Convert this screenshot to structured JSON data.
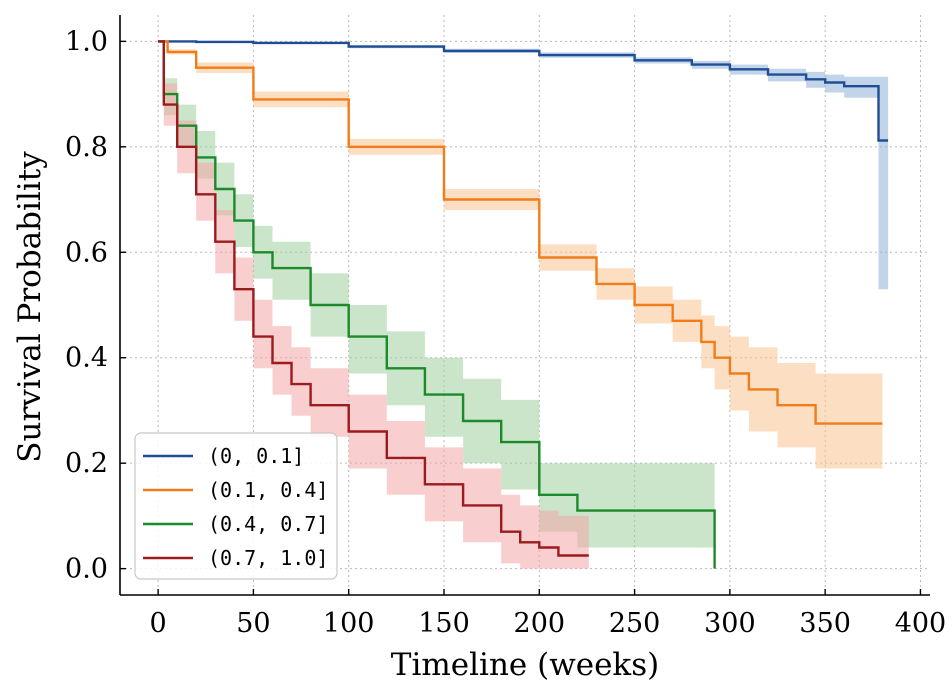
{
  "chart_data": {
    "type": "line",
    "step": true,
    "xlabel": "Timeline (weeks)",
    "ylabel": "Survival Probability",
    "xlim": [
      -20,
      405
    ],
    "ylim": [
      -0.05,
      1.05
    ],
    "xticks": [
      0,
      50,
      100,
      150,
      200,
      250,
      300,
      350,
      400
    ],
    "yticks": [
      0.0,
      0.2,
      0.4,
      0.6,
      0.8,
      1.0
    ],
    "xtick_labels": [
      "0",
      "50",
      "100",
      "150",
      "200",
      "250",
      "300",
      "350",
      "400"
    ],
    "ytick_labels": [
      "0.0",
      "0.2",
      "0.4",
      "0.6",
      "0.8",
      "1.0"
    ],
    "grid": true,
    "legend_position": "lower-left",
    "series": [
      {
        "name": "(0, 0.1]",
        "color": "#1f4e96",
        "band_color": "#8fb0d8",
        "x": [
          0,
          20,
          50,
          100,
          150,
          200,
          250,
          280,
          300,
          320,
          340,
          350,
          360,
          375,
          378,
          383
        ],
        "y": [
          1.0,
          0.999,
          0.997,
          0.99,
          0.982,
          0.974,
          0.964,
          0.956,
          0.947,
          0.937,
          0.928,
          0.922,
          0.915,
          0.915,
          0.812,
          0.812
        ],
        "lower": [
          1.0,
          0.998,
          0.995,
          0.987,
          0.978,
          0.969,
          0.958,
          0.948,
          0.937,
          0.924,
          0.912,
          0.903,
          0.893,
          0.893,
          0.53,
          0.53
        ],
        "upper": [
          1.0,
          1.0,
          0.999,
          0.993,
          0.986,
          0.979,
          0.97,
          0.963,
          0.956,
          0.948,
          0.942,
          0.937,
          0.933,
          0.933,
          0.933,
          0.933
        ]
      },
      {
        "name": "(0.1, 0.4]",
        "color": "#f07d1a",
        "band_color": "#f9c48f",
        "x": [
          0,
          5,
          20,
          50,
          100,
          150,
          200,
          230,
          250,
          270,
          285,
          292,
          300,
          310,
          325,
          345,
          380
        ],
        "y": [
          1.0,
          0.98,
          0.95,
          0.89,
          0.8,
          0.7,
          0.59,
          0.54,
          0.5,
          0.47,
          0.43,
          0.4,
          0.37,
          0.34,
          0.31,
          0.275,
          0.275
        ],
        "lower": [
          1.0,
          0.975,
          0.94,
          0.875,
          0.785,
          0.68,
          0.565,
          0.51,
          0.465,
          0.43,
          0.38,
          0.34,
          0.3,
          0.26,
          0.23,
          0.19,
          0.19
        ],
        "upper": [
          1.0,
          0.985,
          0.96,
          0.905,
          0.815,
          0.72,
          0.615,
          0.57,
          0.535,
          0.51,
          0.48,
          0.46,
          0.44,
          0.42,
          0.39,
          0.37,
          0.37
        ]
      },
      {
        "name": "(0.4, 0.7]",
        "color": "#1c8a2b",
        "band_color": "#9fcf9f",
        "x": [
          0,
          3,
          10,
          20,
          30,
          40,
          50,
          60,
          80,
          100,
          120,
          140,
          160,
          180,
          200,
          220,
          250,
          280,
          291,
          292
        ],
        "y": [
          1.0,
          0.9,
          0.84,
          0.78,
          0.72,
          0.66,
          0.6,
          0.57,
          0.5,
          0.44,
          0.38,
          0.33,
          0.28,
          0.24,
          0.14,
          0.11,
          0.11,
          0.11,
          0.11,
          0.0
        ],
        "lower": [
          1.0,
          0.86,
          0.8,
          0.74,
          0.67,
          0.61,
          0.55,
          0.51,
          0.44,
          0.37,
          0.31,
          0.25,
          0.2,
          0.15,
          0.07,
          0.04,
          0.04,
          0.04,
          0.04,
          0.0
        ],
        "upper": [
          1.0,
          0.93,
          0.88,
          0.83,
          0.77,
          0.71,
          0.65,
          0.62,
          0.56,
          0.5,
          0.45,
          0.4,
          0.36,
          0.32,
          0.2,
          0.2,
          0.2,
          0.2,
          0.2,
          0.0
        ]
      },
      {
        "name": "(0.7, 1.0]",
        "color": "#9b1b1e",
        "band_color": "#f3a6a6",
        "x": [
          0,
          3,
          10,
          20,
          30,
          40,
          50,
          60,
          70,
          80,
          100,
          120,
          140,
          160,
          180,
          190,
          200,
          210,
          226
        ],
        "y": [
          1.0,
          0.88,
          0.8,
          0.71,
          0.62,
          0.53,
          0.44,
          0.39,
          0.35,
          0.31,
          0.26,
          0.21,
          0.16,
          0.12,
          0.07,
          0.05,
          0.04,
          0.025,
          0.025
        ],
        "lower": [
          1.0,
          0.84,
          0.75,
          0.66,
          0.56,
          0.47,
          0.38,
          0.33,
          0.29,
          0.25,
          0.19,
          0.14,
          0.09,
          0.05,
          0.01,
          0.0,
          0.0,
          0.0,
          0.0
        ],
        "upper": [
          1.0,
          0.92,
          0.85,
          0.77,
          0.68,
          0.59,
          0.51,
          0.46,
          0.42,
          0.38,
          0.33,
          0.28,
          0.23,
          0.19,
          0.14,
          0.12,
          0.11,
          0.1,
          0.1
        ]
      }
    ]
  }
}
